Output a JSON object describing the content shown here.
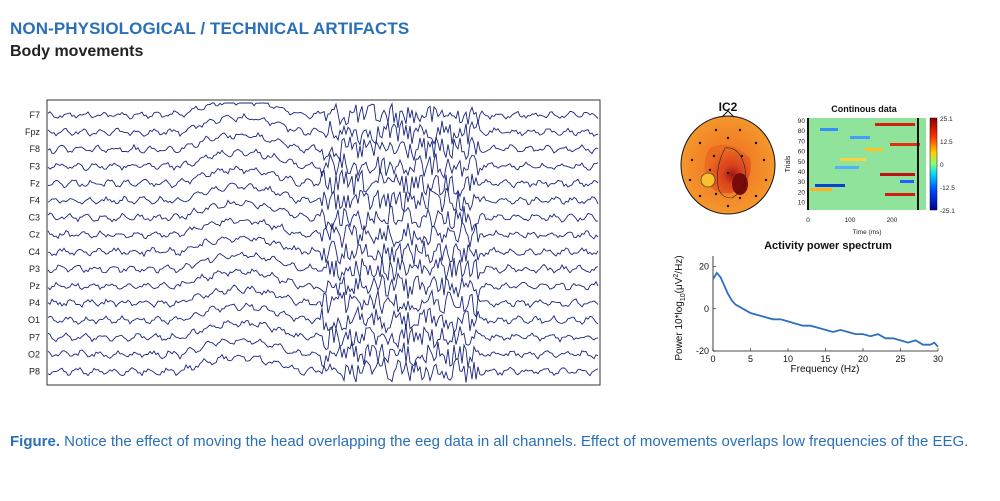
{
  "header": {
    "title": "NON-PHYSIOLOGICAL / TECHNICAL ARTIFACTS",
    "subtitle": "Body movements"
  },
  "eeg": {
    "channels": [
      "F7",
      "Fpz",
      "F8",
      "F3",
      "Fz",
      "F4",
      "C3",
      "Cz",
      "C4",
      "P3",
      "Pz",
      "P4",
      "O1",
      "P7",
      "O2",
      "P8"
    ]
  },
  "component": {
    "title": "IC2"
  },
  "erpimage": {
    "title": "Continous data",
    "ylabel": "Trials",
    "xlabel": "Time (ms)",
    "yticks": [
      "90",
      "80",
      "70",
      "60",
      "50",
      "40",
      "30",
      "20",
      "10"
    ],
    "xticks": [
      "0",
      "100",
      "200"
    ],
    "colorbar_ticks": [
      "25.1",
      "12.5",
      "0",
      "-12.5",
      "-25.1"
    ]
  },
  "chart_data": {
    "type": "line",
    "title": "Activity power spectrum",
    "xlabel": "Frequency (Hz)",
    "ylabel": "Power 10*log10(μV²/Hz)",
    "xlim": [
      0,
      30
    ],
    "ylim": [
      -20,
      25
    ],
    "xticks": [
      "0",
      "5",
      "10",
      "15",
      "20",
      "25",
      "30"
    ],
    "yticks": [
      "20",
      "0",
      "-20"
    ],
    "series": [
      {
        "x": [
          0,
          0.5,
          1,
          1.5,
          2,
          2.5,
          3,
          3.5,
          4,
          4.5,
          5,
          6,
          7,
          8,
          9,
          10,
          11,
          12,
          13,
          14,
          15,
          16,
          17,
          18,
          19,
          20,
          21,
          22,
          23,
          24,
          25,
          26,
          27,
          28,
          29,
          29.5,
          30
        ],
        "y": [
          14,
          17,
          15,
          11,
          7,
          4,
          2,
          1,
          0,
          -1,
          -2,
          -3,
          -4,
          -5,
          -5,
          -6,
          -7,
          -8,
          -8,
          -9,
          -10,
          -11,
          -10,
          -11,
          -12,
          -12,
          -13,
          -12,
          -14,
          -14,
          -15,
          -16,
          -15,
          -17,
          -17,
          -16,
          -18
        ]
      }
    ]
  },
  "caption": {
    "prefix": "Figure.",
    "text": " Notice the effect of moving the head overlapping the eeg data in all channels. Effect of movements overlaps low frequencies of the EEG."
  }
}
